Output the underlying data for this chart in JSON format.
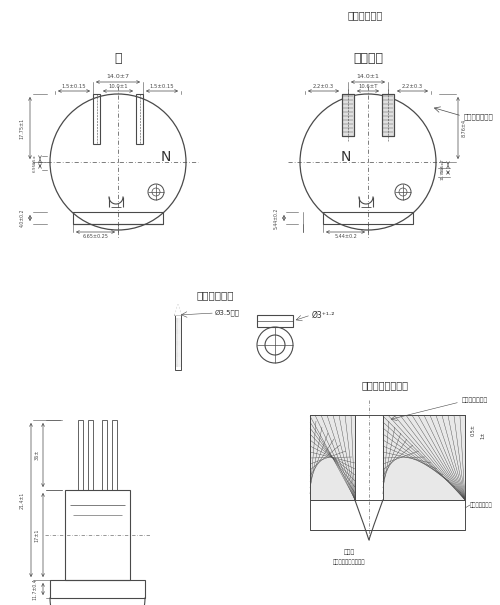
{
  "bg_color": "#ffffff",
  "lc": "#4a4a4a",
  "tc": "#333333",
  "title_unit": "（単位ｍｍ）",
  "title1": "刃",
  "title2": "刃受け穴",
  "title3": "刃先の拡大図",
  "title4": "刃受け穴の断面図",
  "label_mentori": "面取りすること",
  "label_haduke": "刃受け\n（形状は一例を示す）",
  "label_potchi": "ポッチの中心線"
}
